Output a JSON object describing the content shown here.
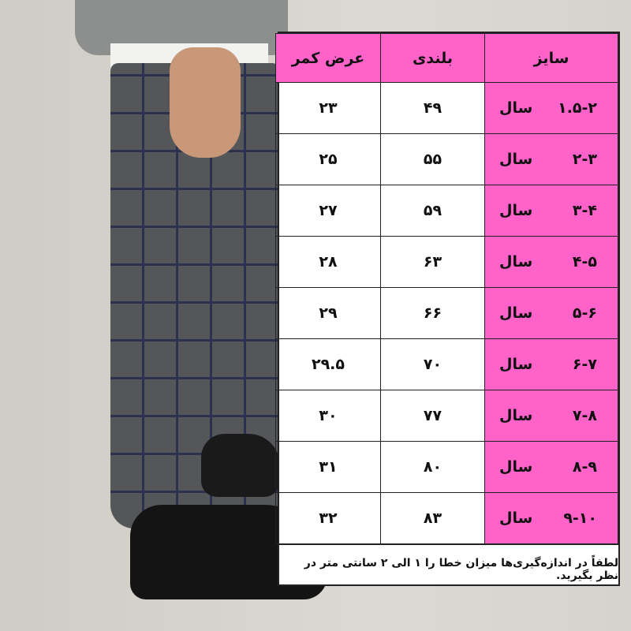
{
  "size_chart": {
    "headers": [
      "سایز",
      "بلندی",
      "عرض کمر"
    ],
    "year_label": "سال",
    "rows": [
      {
        "size": "۱.۵-۲",
        "height": "۴۹",
        "waist": "۲۳"
      },
      {
        "size": "۲-۳",
        "height": "۵۵",
        "waist": "۲۵"
      },
      {
        "size": "۳-۴",
        "height": "۵۹",
        "waist": "۲۷"
      },
      {
        "size": "۴-۵",
        "height": "۶۳",
        "waist": "۲۸"
      },
      {
        "size": "۵-۶",
        "height": "۶۶",
        "waist": "۲۹"
      },
      {
        "size": "۶-۷",
        "height": "۷۰",
        "waist": "۲۹.۵"
      },
      {
        "size": "۷-۸",
        "height": "۷۷",
        "waist": "۳۰"
      },
      {
        "size": "۸-۹",
        "height": "۸۰",
        "waist": "۳۱"
      },
      {
        "size": "۹-۱۰",
        "height": "۸۳",
        "waist": "۳۲"
      }
    ],
    "note": "لطفاً در اندازه‌گیری‌ها میزان خطا را ۱ الی ۲ سانتی متر در نظر بگیرید.",
    "colors": {
      "header": "#ff63c9",
      "size_cell": "#ff63c9"
    }
  }
}
